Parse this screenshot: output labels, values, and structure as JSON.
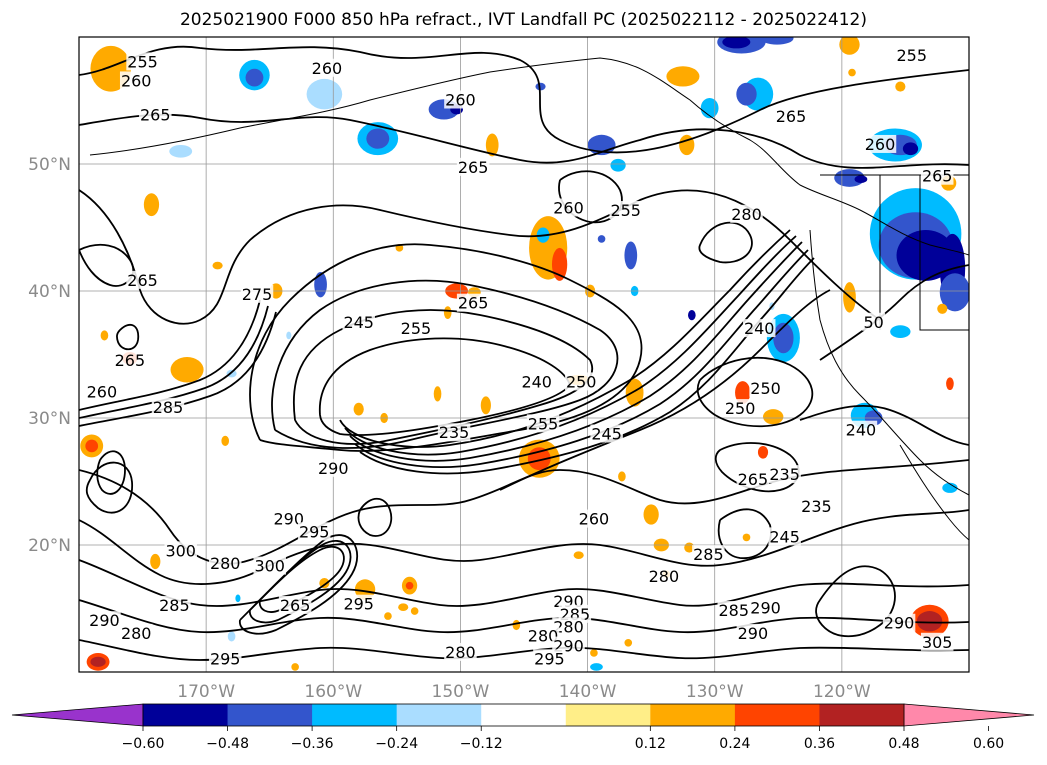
{
  "title": "2025021900 F000 850 hPa refract., IVT Landfall PC (2025022112 - 2025022412)",
  "map": {
    "projection": "cylindrical",
    "lon_range": [
      -180,
      -110
    ],
    "lat_range": [
      10,
      60
    ],
    "gridlines": true,
    "lat_labels": [
      {
        "lat": 50,
        "text": "50°N"
      },
      {
        "lat": 40,
        "text": "40°N"
      },
      {
        "lat": 30,
        "text": "30°N"
      },
      {
        "lat": 20,
        "text": "20°N"
      }
    ],
    "lon_labels": [
      {
        "lon": -170,
        "text": "170°W"
      },
      {
        "lon": -160,
        "text": "160°W"
      },
      {
        "lon": -150,
        "text": "150°W"
      },
      {
        "lon": -140,
        "text": "140°W"
      },
      {
        "lon": -130,
        "text": "130°W"
      },
      {
        "lon": -120,
        "text": "120°W"
      }
    ],
    "contour_field": "850 hPa refractivity",
    "contour_labels": [
      {
        "text": "255",
        "lon": -175,
        "lat": 58
      },
      {
        "text": "260",
        "lon": -175.5,
        "lat": 56.5
      },
      {
        "text": "265",
        "lon": -174,
        "lat": 53.8
      },
      {
        "text": "260",
        "lon": -160.5,
        "lat": 57.5
      },
      {
        "text": "260",
        "lon": -150,
        "lat": 55
      },
      {
        "text": "265",
        "lon": -149,
        "lat": 49.7
      },
      {
        "text": "260",
        "lon": -141.5,
        "lat": 46.5
      },
      {
        "text": "255",
        "lon": -137,
        "lat": 46.3
      },
      {
        "text": "280",
        "lon": -127.5,
        "lat": 46
      },
      {
        "text": "265",
        "lon": -124,
        "lat": 53.7
      },
      {
        "text": "255",
        "lon": -114.5,
        "lat": 58.5
      },
      {
        "text": "260",
        "lon": -117,
        "lat": 51.5
      },
      {
        "text": "265",
        "lon": -112.5,
        "lat": 49
      },
      {
        "text": "265",
        "lon": -175,
        "lat": 40.8
      },
      {
        "text": "275",
        "lon": -166,
        "lat": 39.7
      },
      {
        "text": "265",
        "lon": -149,
        "lat": 39
      },
      {
        "text": "245",
        "lon": -158,
        "lat": 37.5
      },
      {
        "text": "255",
        "lon": -153.5,
        "lat": 37
      },
      {
        "text": "240",
        "lon": -126.5,
        "lat": 37
      },
      {
        "text": "50",
        "lon": -117.5,
        "lat": 37.5
      },
      {
        "text": "265",
        "lon": -176,
        "lat": 34.5
      },
      {
        "text": "260",
        "lon": -178.2,
        "lat": 32
      },
      {
        "text": "285",
        "lon": -173,
        "lat": 30.8
      },
      {
        "text": "240",
        "lon": -144,
        "lat": 32.8
      },
      {
        "text": "250",
        "lon": -140.5,
        "lat": 32.8
      },
      {
        "text": "250",
        "lon": -128,
        "lat": 30.7
      },
      {
        "text": "250",
        "lon": -126,
        "lat": 32.3
      },
      {
        "text": "235",
        "lon": -150.5,
        "lat": 28.8
      },
      {
        "text": "255",
        "lon": -143.5,
        "lat": 29.5
      },
      {
        "text": "245",
        "lon": -138.5,
        "lat": 28.7
      },
      {
        "text": "240",
        "lon": -118.5,
        "lat": 29
      },
      {
        "text": "235",
        "lon": -124.5,
        "lat": 25.5
      },
      {
        "text": "265",
        "lon": -127,
        "lat": 25.1
      },
      {
        "text": "290",
        "lon": -160,
        "lat": 26
      },
      {
        "text": "235",
        "lon": -122,
        "lat": 23
      },
      {
        "text": "290",
        "lon": -163.5,
        "lat": 22
      },
      {
        "text": "295",
        "lon": -161.5,
        "lat": 21
      },
      {
        "text": "260",
        "lon": -139.5,
        "lat": 22
      },
      {
        "text": "245",
        "lon": -124.5,
        "lat": 20.6
      },
      {
        "text": "300",
        "lon": -172,
        "lat": 19.5
      },
      {
        "text": "280",
        "lon": -168.5,
        "lat": 18.5
      },
      {
        "text": "300",
        "lon": -165,
        "lat": 18.3
      },
      {
        "text": "285",
        "lon": -130.5,
        "lat": 19.2
      },
      {
        "text": "280",
        "lon": -134,
        "lat": 17.5
      },
      {
        "text": "285",
        "lon": -172.5,
        "lat": 15.2
      },
      {
        "text": "265",
        "lon": -163,
        "lat": 15.2
      },
      {
        "text": "295",
        "lon": -158,
        "lat": 15.3
      },
      {
        "text": "290",
        "lon": -141.5,
        "lat": 15.5
      },
      {
        "text": "285",
        "lon": -141,
        "lat": 14.5
      },
      {
        "text": "280",
        "lon": -141.5,
        "lat": 13.5
      },
      {
        "text": "285",
        "lon": -128.5,
        "lat": 14.8
      },
      {
        "text": "290",
        "lon": -126,
        "lat": 15
      },
      {
        "text": "290",
        "lon": -127,
        "lat": 13
      },
      {
        "text": "280",
        "lon": -143.5,
        "lat": 12.8
      },
      {
        "text": "290",
        "lon": -141.5,
        "lat": 12
      },
      {
        "text": "295",
        "lon": -143,
        "lat": 11
      },
      {
        "text": "280",
        "lon": -150,
        "lat": 11.5
      },
      {
        "text": "290",
        "lon": -178,
        "lat": 14
      },
      {
        "text": "280",
        "lon": -175.5,
        "lat": 13
      },
      {
        "text": "295",
        "lon": -168.5,
        "lat": 11
      },
      {
        "text": "290",
        "lon": -115.5,
        "lat": 13.8
      },
      {
        "text": "305",
        "lon": -112.5,
        "lat": 12.3
      }
    ],
    "shading_field": "IVT Landfall PC",
    "shaded_patches": [
      {
        "lon": -177.5,
        "lat": 57.5,
        "rx": 1.6,
        "ry": 1.8,
        "level": "0.24"
      },
      {
        "lon": -166.2,
        "lat": 57,
        "rx": 1.2,
        "ry": 1.2,
        "level": "-0.24"
      },
      {
        "lon": -166.2,
        "lat": 56.8,
        "rx": 0.7,
        "ry": 0.7,
        "level": "-0.36"
      },
      {
        "lon": -160.7,
        "lat": 55.5,
        "rx": 1.4,
        "ry": 1.2,
        "level": "-0.12"
      },
      {
        "lon": -156.5,
        "lat": 52,
        "rx": 1.6,
        "ry": 1.3,
        "level": "-0.24"
      },
      {
        "lon": -156.5,
        "lat": 52,
        "rx": 0.9,
        "ry": 0.8,
        "level": "-0.36"
      },
      {
        "lon": -151.3,
        "lat": 54.3,
        "rx": 1.2,
        "ry": 0.8,
        "level": "-0.36"
      },
      {
        "lon": -150.3,
        "lat": 54.3,
        "rx": 0.5,
        "ry": 0.4,
        "level": "-0.48"
      },
      {
        "lon": -147.5,
        "lat": 51.5,
        "rx": 0.5,
        "ry": 0.9,
        "level": "0.24"
      },
      {
        "lon": -143.7,
        "lat": 56.1,
        "rx": 0.4,
        "ry": 0.3,
        "level": "-0.36"
      },
      {
        "lon": -138.9,
        "lat": 51.5,
        "rx": 1.1,
        "ry": 0.8,
        "level": "-0.36"
      },
      {
        "lon": -137.6,
        "lat": 49.9,
        "rx": 0.6,
        "ry": 0.5,
        "level": "-0.24"
      },
      {
        "lon": -132.2,
        "lat": 51.5,
        "rx": 0.6,
        "ry": 0.8,
        "level": "0.24"
      },
      {
        "lon": -132.5,
        "lat": 56.9,
        "rx": 1.3,
        "ry": 0.8,
        "level": "0.24"
      },
      {
        "lon": -130.4,
        "lat": 54.4,
        "rx": 0.7,
        "ry": 0.8,
        "level": "-0.24"
      },
      {
        "lon": -126.6,
        "lat": 55.5,
        "rx": 1.2,
        "ry": 1.3,
        "level": "-0.24"
      },
      {
        "lon": -127.5,
        "lat": 55.5,
        "rx": 0.8,
        "ry": 0.9,
        "level": "-0.36"
      },
      {
        "lon": -127.9,
        "lat": 59.6,
        "rx": 1.9,
        "ry": 0.9,
        "level": "-0.36"
      },
      {
        "lon": -128.3,
        "lat": 59.6,
        "rx": 1.1,
        "ry": 0.5,
        "level": "-0.48"
      },
      {
        "lon": -125.1,
        "lat": 59.9,
        "rx": 1.3,
        "ry": 0.5,
        "level": "-0.36"
      },
      {
        "lon": -119.4,
        "lat": 59.4,
        "rx": 0.8,
        "ry": 0.8,
        "level": "0.24"
      },
      {
        "lon": -119.2,
        "lat": 57.2,
        "rx": 0.3,
        "ry": 0.3,
        "level": "0.24"
      },
      {
        "lon": -115.4,
        "lat": 56.1,
        "rx": 0.4,
        "ry": 0.4,
        "level": "0.24"
      },
      {
        "lon": -115.8,
        "lat": 51.5,
        "rx": 2.1,
        "ry": 1.3,
        "level": "-0.24"
      },
      {
        "lon": -115.4,
        "lat": 51.5,
        "rx": 1.3,
        "ry": 0.8,
        "level": "-0.36"
      },
      {
        "lon": -114.6,
        "lat": 51.2,
        "rx": 0.6,
        "ry": 0.5,
        "level": "-0.48"
      },
      {
        "lon": -119.4,
        "lat": 48.9,
        "rx": 1.2,
        "ry": 0.7,
        "level": "-0.36"
      },
      {
        "lon": -118.5,
        "lat": 48.8,
        "rx": 0.5,
        "ry": 0.3,
        "level": "-0.48"
      },
      {
        "lon": -111.6,
        "lat": 48.5,
        "rx": 0.6,
        "ry": 0.6,
        "level": "0.24"
      },
      {
        "lon": -114.2,
        "lat": 44.5,
        "rx": 3.6,
        "ry": 3.6,
        "level": "-0.24"
      },
      {
        "lon": -114.2,
        "lat": 43.6,
        "rx": 2.9,
        "ry": 2.6,
        "level": "-0.36"
      },
      {
        "lon": -113.4,
        "lat": 42.8,
        "rx": 2.3,
        "ry": 2.0,
        "level": "-0.48"
      },
      {
        "lon": -111.3,
        "lat": 41.8,
        "rx": 1.0,
        "ry": 2.7,
        "level": "-0.48"
      },
      {
        "lon": -111.1,
        "lat": 39.9,
        "rx": 1.2,
        "ry": 1.5,
        "level": "-0.36"
      },
      {
        "lon": -115.4,
        "lat": 36.8,
        "rx": 0.8,
        "ry": 0.5,
        "level": "-0.24"
      },
      {
        "lon": -112.1,
        "lat": 38.6,
        "rx": 0.4,
        "ry": 0.4,
        "level": "0.24"
      },
      {
        "lon": -119.4,
        "lat": 39.5,
        "rx": 0.5,
        "ry": 1.2,
        "level": "0.24"
      },
      {
        "lon": -124.6,
        "lat": 36.3,
        "rx": 1.3,
        "ry": 1.9,
        "level": "-0.24"
      },
      {
        "lon": -124.6,
        "lat": 36.3,
        "rx": 0.8,
        "ry": 1.2,
        "level": "-0.36"
      },
      {
        "lon": -125.5,
        "lat": 38.8,
        "rx": 0.2,
        "ry": 0.3,
        "level": "-0.12"
      },
      {
        "lon": -131.8,
        "lat": 38.1,
        "rx": 0.3,
        "ry": 0.4,
        "level": "-0.48"
      },
      {
        "lon": -143.1,
        "lat": 43.4,
        "rx": 1.5,
        "ry": 2.5,
        "level": "0.24"
      },
      {
        "lon": -142.2,
        "lat": 42.1,
        "rx": 0.6,
        "ry": 1.3,
        "level": "0.36"
      },
      {
        "lon": -143.5,
        "lat": 44.4,
        "rx": 0.5,
        "ry": 0.6,
        "level": "-0.24"
      },
      {
        "lon": -139.8,
        "lat": 40.0,
        "rx": 0.4,
        "ry": 0.5,
        "level": "0.24"
      },
      {
        "lon": -138.9,
        "lat": 44.1,
        "rx": 0.3,
        "ry": 0.3,
        "level": "-0.36"
      },
      {
        "lon": -136.6,
        "lat": 42.8,
        "rx": 0.5,
        "ry": 1.1,
        "level": "-0.36"
      },
      {
        "lon": -136.3,
        "lat": 40.0,
        "rx": 0.3,
        "ry": 0.4,
        "level": "-0.24"
      },
      {
        "lon": -150.3,
        "lat": 40.0,
        "rx": 0.9,
        "ry": 0.6,
        "level": "0.36"
      },
      {
        "lon": -148.9,
        "lat": 39.9,
        "rx": 0.5,
        "ry": 0.4,
        "level": "0.24"
      },
      {
        "lon": -151.0,
        "lat": 38.3,
        "rx": 0.3,
        "ry": 0.5,
        "level": "0.24"
      },
      {
        "lon": -154.8,
        "lat": 43.4,
        "rx": 0.3,
        "ry": 0.3,
        "level": "0.24"
      },
      {
        "lon": -169.1,
        "lat": 42.0,
        "rx": 0.4,
        "ry": 0.3,
        "level": "0.24"
      },
      {
        "lon": -174.3,
        "lat": 46.8,
        "rx": 0.6,
        "ry": 0.9,
        "level": "0.24"
      },
      {
        "lon": -172.0,
        "lat": 51.0,
        "rx": 0.9,
        "ry": 0.5,
        "level": "-0.12"
      },
      {
        "lon": -161.0,
        "lat": 40.5,
        "rx": 0.5,
        "ry": 1.0,
        "level": "-0.36"
      },
      {
        "lon": -164.5,
        "lat": 40.0,
        "rx": 0.5,
        "ry": 0.6,
        "level": "0.24"
      },
      {
        "lon": -178.0,
        "lat": 36.5,
        "rx": 0.3,
        "ry": 0.4,
        "level": "0.24"
      },
      {
        "lon": -176.0,
        "lat": 34.7,
        "rx": 0.6,
        "ry": 0.5,
        "level": "0.36"
      },
      {
        "lon": -171.5,
        "lat": 33.8,
        "rx": 1.3,
        "ry": 1.0,
        "level": "0.24"
      },
      {
        "lon": -168.0,
        "lat": 33.5,
        "rx": 0.4,
        "ry": 0.3,
        "level": "-0.12"
      },
      {
        "lon": -163.5,
        "lat": 36.5,
        "rx": 0.2,
        "ry": 0.3,
        "level": "-0.12"
      },
      {
        "lon": -179.0,
        "lat": 27.8,
        "rx": 0.9,
        "ry": 0.9,
        "level": "0.24"
      },
      {
        "lon": -179.0,
        "lat": 27.8,
        "rx": 0.5,
        "ry": 0.5,
        "level": "0.36"
      },
      {
        "lon": -168.5,
        "lat": 28.2,
        "rx": 0.3,
        "ry": 0.4,
        "level": "0.24"
      },
      {
        "lon": -158.0,
        "lat": 30.7,
        "rx": 0.4,
        "ry": 0.5,
        "level": "0.24"
      },
      {
        "lon": -156.0,
        "lat": 30.0,
        "rx": 0.3,
        "ry": 0.4,
        "level": "0.24"
      },
      {
        "lon": -151.8,
        "lat": 31.9,
        "rx": 0.3,
        "ry": 0.6,
        "level": "0.24"
      },
      {
        "lon": -148.0,
        "lat": 31.0,
        "rx": 0.4,
        "ry": 0.7,
        "level": "0.24"
      },
      {
        "lon": -140.7,
        "lat": 33.0,
        "rx": 0.9,
        "ry": 0.4,
        "level": "0.24"
      },
      {
        "lon": -143.8,
        "lat": 26.8,
        "rx": 1.6,
        "ry": 1.5,
        "level": "0.24"
      },
      {
        "lon": -143.8,
        "lat": 26.8,
        "rx": 0.9,
        "ry": 0.9,
        "level": "0.36"
      },
      {
        "lon": -136.3,
        "lat": 32.0,
        "rx": 0.7,
        "ry": 1.1,
        "level": "0.24"
      },
      {
        "lon": -137.3,
        "lat": 25.4,
        "rx": 0.3,
        "ry": 0.4,
        "level": "0.24"
      },
      {
        "lon": -127.8,
        "lat": 32.0,
        "rx": 0.6,
        "ry": 0.9,
        "level": "0.36"
      },
      {
        "lon": -125.4,
        "lat": 30.1,
        "rx": 0.8,
        "ry": 0.6,
        "level": "0.24"
      },
      {
        "lon": -126.2,
        "lat": 27.3,
        "rx": 0.4,
        "ry": 0.5,
        "level": "0.36"
      },
      {
        "lon": -118.2,
        "lat": 30.2,
        "rx": 1.1,
        "ry": 1.0,
        "level": "-0.24"
      },
      {
        "lon": -117.5,
        "lat": 30.0,
        "rx": 0.7,
        "ry": 0.6,
        "level": "-0.36"
      },
      {
        "lon": -111.5,
        "lat": 32.7,
        "rx": 0.3,
        "ry": 0.5,
        "level": "0.36"
      },
      {
        "lon": -111.5,
        "lat": 24.5,
        "rx": 0.6,
        "ry": 0.4,
        "level": "-0.24"
      },
      {
        "lon": -135.0,
        "lat": 22.4,
        "rx": 0.6,
        "ry": 0.8,
        "level": "0.24"
      },
      {
        "lon": -134.2,
        "lat": 20.0,
        "rx": 0.6,
        "ry": 0.5,
        "level": "0.24"
      },
      {
        "lon": -132.0,
        "lat": 19.8,
        "rx": 0.4,
        "ry": 0.4,
        "level": "0.24"
      },
      {
        "lon": -127.5,
        "lat": 20.6,
        "rx": 0.3,
        "ry": 0.3,
        "level": "0.24"
      },
      {
        "lon": -133.8,
        "lat": 17.7,
        "rx": 0.3,
        "ry": 0.3,
        "level": "0.24"
      },
      {
        "lon": -140.7,
        "lat": 19.2,
        "rx": 0.4,
        "ry": 0.3,
        "level": "0.24"
      },
      {
        "lon": -160.7,
        "lat": 17.0,
        "rx": 0.4,
        "ry": 0.4,
        "level": "0.24"
      },
      {
        "lon": -157.5,
        "lat": 16.5,
        "rx": 0.8,
        "ry": 0.8,
        "level": "0.24"
      },
      {
        "lon": -154.0,
        "lat": 16.8,
        "rx": 0.6,
        "ry": 0.7,
        "level": "0.24"
      },
      {
        "lon": -154.0,
        "lat": 16.8,
        "rx": 0.3,
        "ry": 0.3,
        "level": "0.36"
      },
      {
        "lon": -154.5,
        "lat": 15.1,
        "rx": 0.4,
        "ry": 0.3,
        "level": "0.24"
      },
      {
        "lon": -155.7,
        "lat": 14.4,
        "rx": 0.3,
        "ry": 0.3,
        "level": "0.24"
      },
      {
        "lon": -153.6,
        "lat": 14.8,
        "rx": 0.3,
        "ry": 0.3,
        "level": "0.24"
      },
      {
        "lon": -145.6,
        "lat": 13.7,
        "rx": 0.3,
        "ry": 0.4,
        "level": "0.24"
      },
      {
        "lon": -139.5,
        "lat": 11.5,
        "rx": 0.3,
        "ry": 0.3,
        "level": "0.24"
      },
      {
        "lon": -136.8,
        "lat": 12.3,
        "rx": 0.3,
        "ry": 0.3,
        "level": "0.24"
      },
      {
        "lon": -139.3,
        "lat": 10.4,
        "rx": 0.5,
        "ry": 0.3,
        "level": "-0.24"
      },
      {
        "lon": -174.0,
        "lat": 18.7,
        "rx": 0.4,
        "ry": 0.6,
        "level": "0.24"
      },
      {
        "lon": -178.5,
        "lat": 10.8,
        "rx": 0.9,
        "ry": 0.7,
        "level": "0.36"
      },
      {
        "lon": -178.5,
        "lat": 10.8,
        "rx": 0.6,
        "ry": 0.4,
        "level": "0.48"
      },
      {
        "lon": -163.0,
        "lat": 10.4,
        "rx": 0.3,
        "ry": 0.3,
        "level": "0.24"
      },
      {
        "lon": -168.0,
        "lat": 12.8,
        "rx": 0.3,
        "ry": 0.4,
        "level": "-0.12"
      },
      {
        "lon": -167.5,
        "lat": 15.8,
        "rx": 0.2,
        "ry": 0.3,
        "level": "-0.24"
      },
      {
        "lon": -113.1,
        "lat": 14.0,
        "rx": 1.5,
        "ry": 1.3,
        "level": "0.36"
      },
      {
        "lon": -113.1,
        "lat": 14.0,
        "rx": 1.0,
        "ry": 0.8,
        "level": "0.48"
      }
    ]
  },
  "colorbar": {
    "bins": [
      {
        "color": "#9933cc"
      },
      {
        "color": "#000099"
      },
      {
        "color": "#3355cc"
      },
      {
        "color": "#00bbff"
      },
      {
        "color": "#aaddff"
      },
      {
        "color": "#ffffff"
      },
      {
        "color": "#ffee88"
      },
      {
        "color": "#ffaa00"
      },
      {
        "color": "#ff4400"
      },
      {
        "color": "#b22222"
      },
      {
        "color": "#ff88aa"
      }
    ],
    "ticks": [
      "−0.60",
      "−0.48",
      "−0.36",
      "−0.24",
      "−0.12",
      "0.12",
      "0.24",
      "0.36",
      "0.48",
      "0.60"
    ],
    "extend": "both"
  }
}
